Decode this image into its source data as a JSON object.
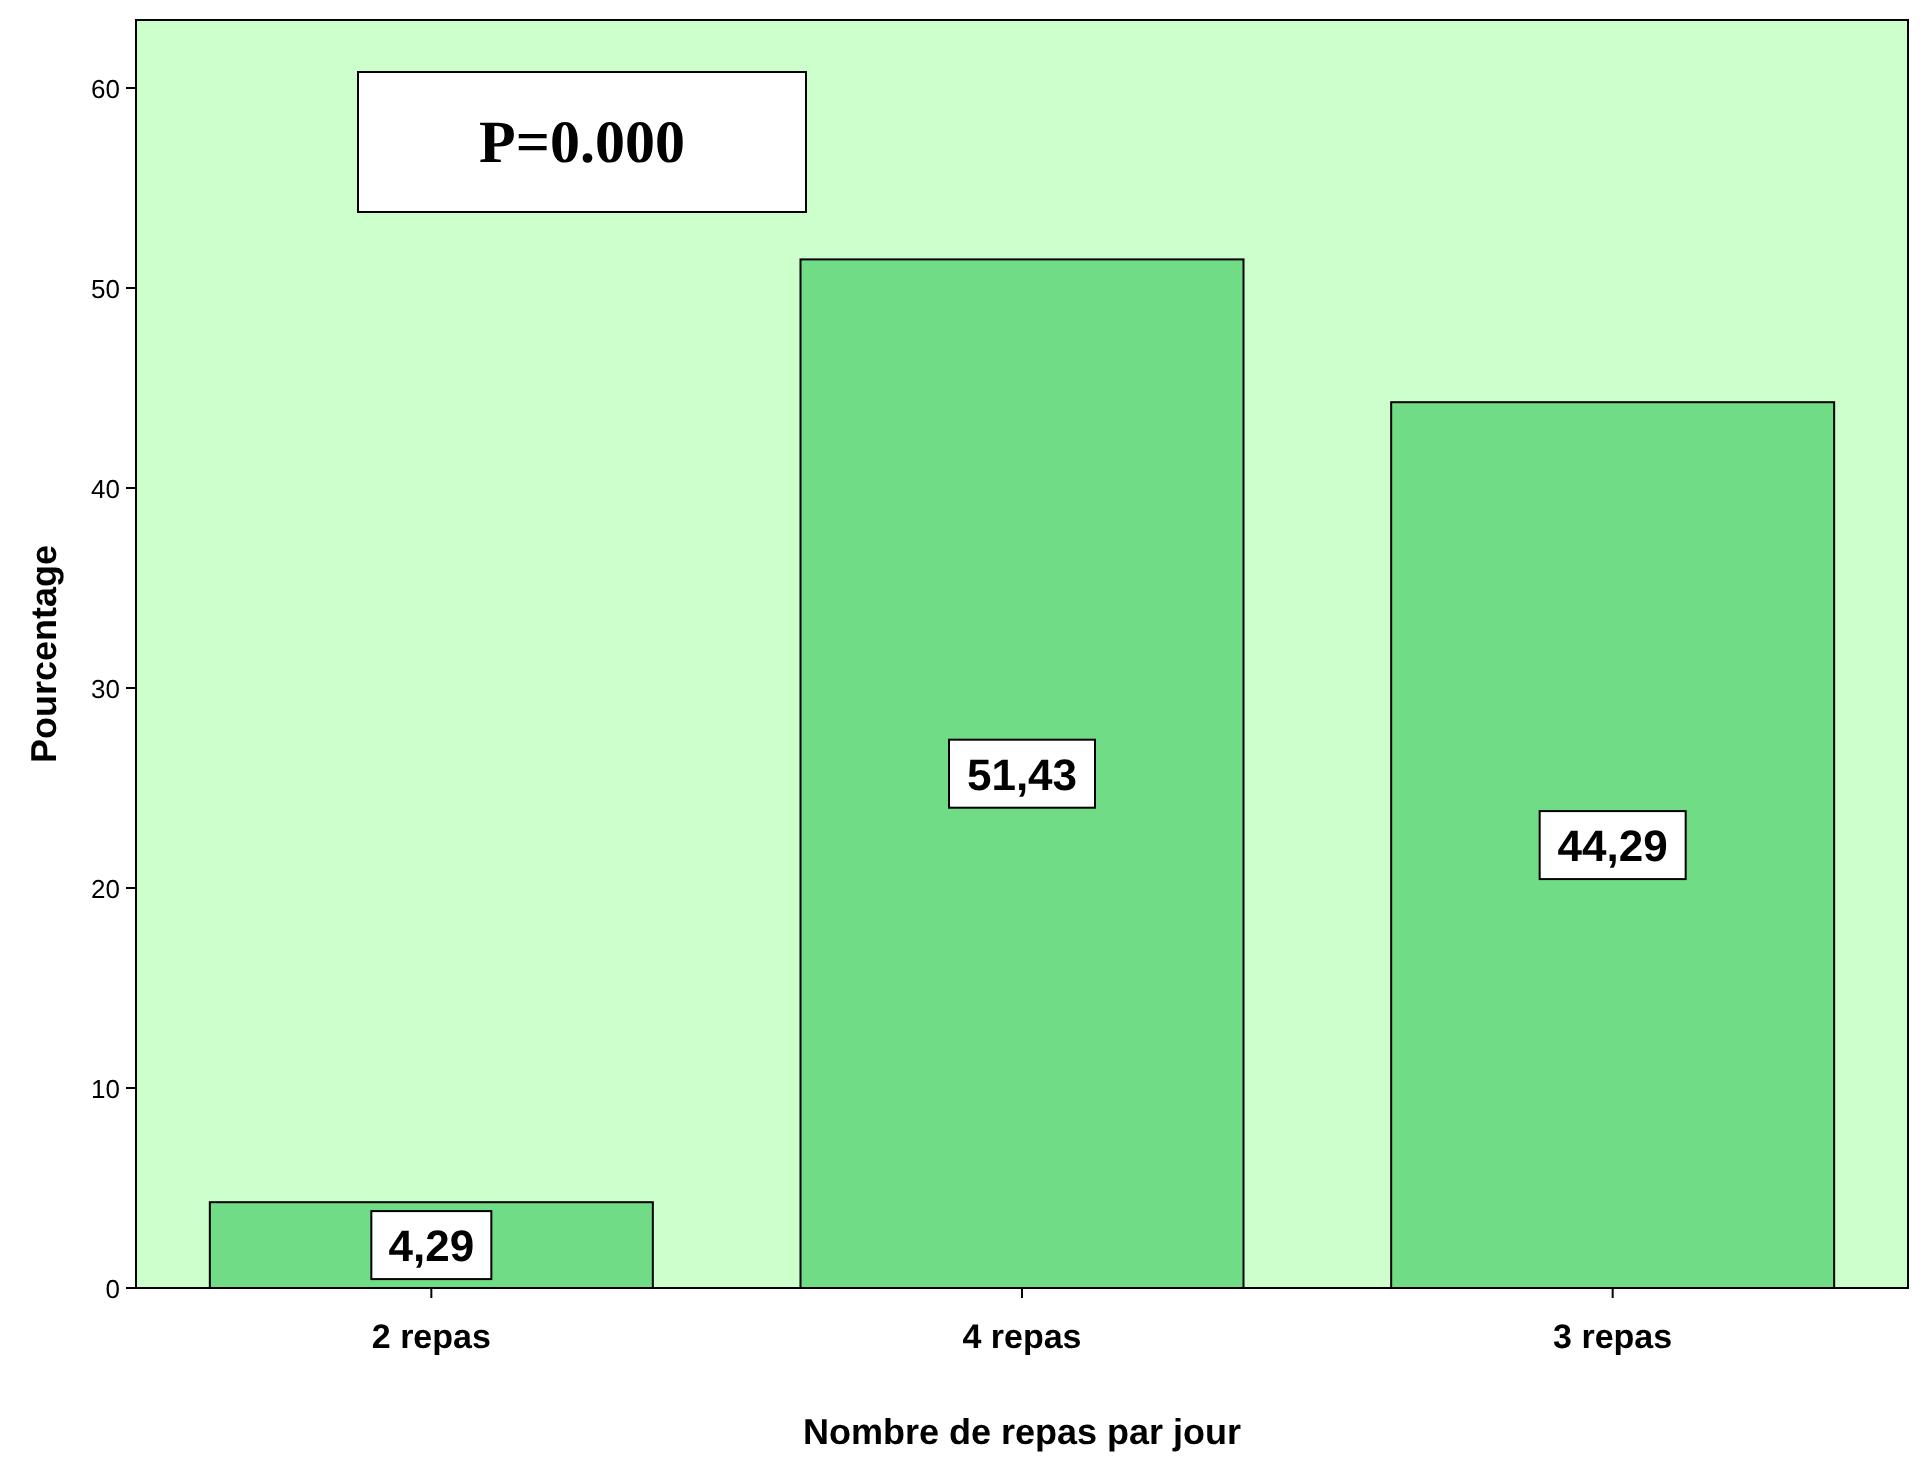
{
  "chart_data": {
    "type": "bar",
    "xlabel": "Nombre de repas par jour",
    "ylabel": "Pourcentage",
    "categories": [
      "2 repas",
      "4 repas",
      "3 repas"
    ],
    "values": [
      4.29,
      51.43,
      44.29
    ],
    "value_labels": [
      "4,29",
      "51,43",
      "44,29"
    ],
    "color": "#70dc86",
    "ylim": [
      0,
      63.4
    ],
    "yticks": [
      0,
      10,
      20,
      30,
      40,
      50,
      60
    ],
    "grid": false,
    "annotations": [
      "P=0.000"
    ]
  }
}
